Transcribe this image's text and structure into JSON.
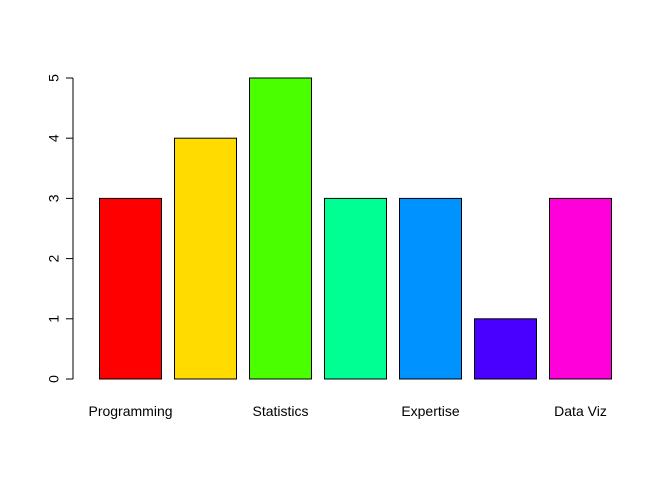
{
  "chart_data": {
    "type": "bar",
    "title": "",
    "xlabel": "",
    "ylabel": "",
    "categories": [
      "Programming",
      "",
      "Statistics",
      "",
      "Expertise",
      "",
      "Data Viz"
    ],
    "values": [
      3,
      4,
      5,
      3,
      3,
      1,
      3
    ],
    "colors": [
      "#FF0000",
      "#FFDB00",
      "#49FF00",
      "#00FF92",
      "#0092FF",
      "#4900FF",
      "#FF00DB"
    ],
    "ylim": [
      0,
      5
    ],
    "yticks": [
      "0",
      "1",
      "2",
      "3",
      "4",
      "5"
    ],
    "grid": false,
    "legend": "none"
  }
}
